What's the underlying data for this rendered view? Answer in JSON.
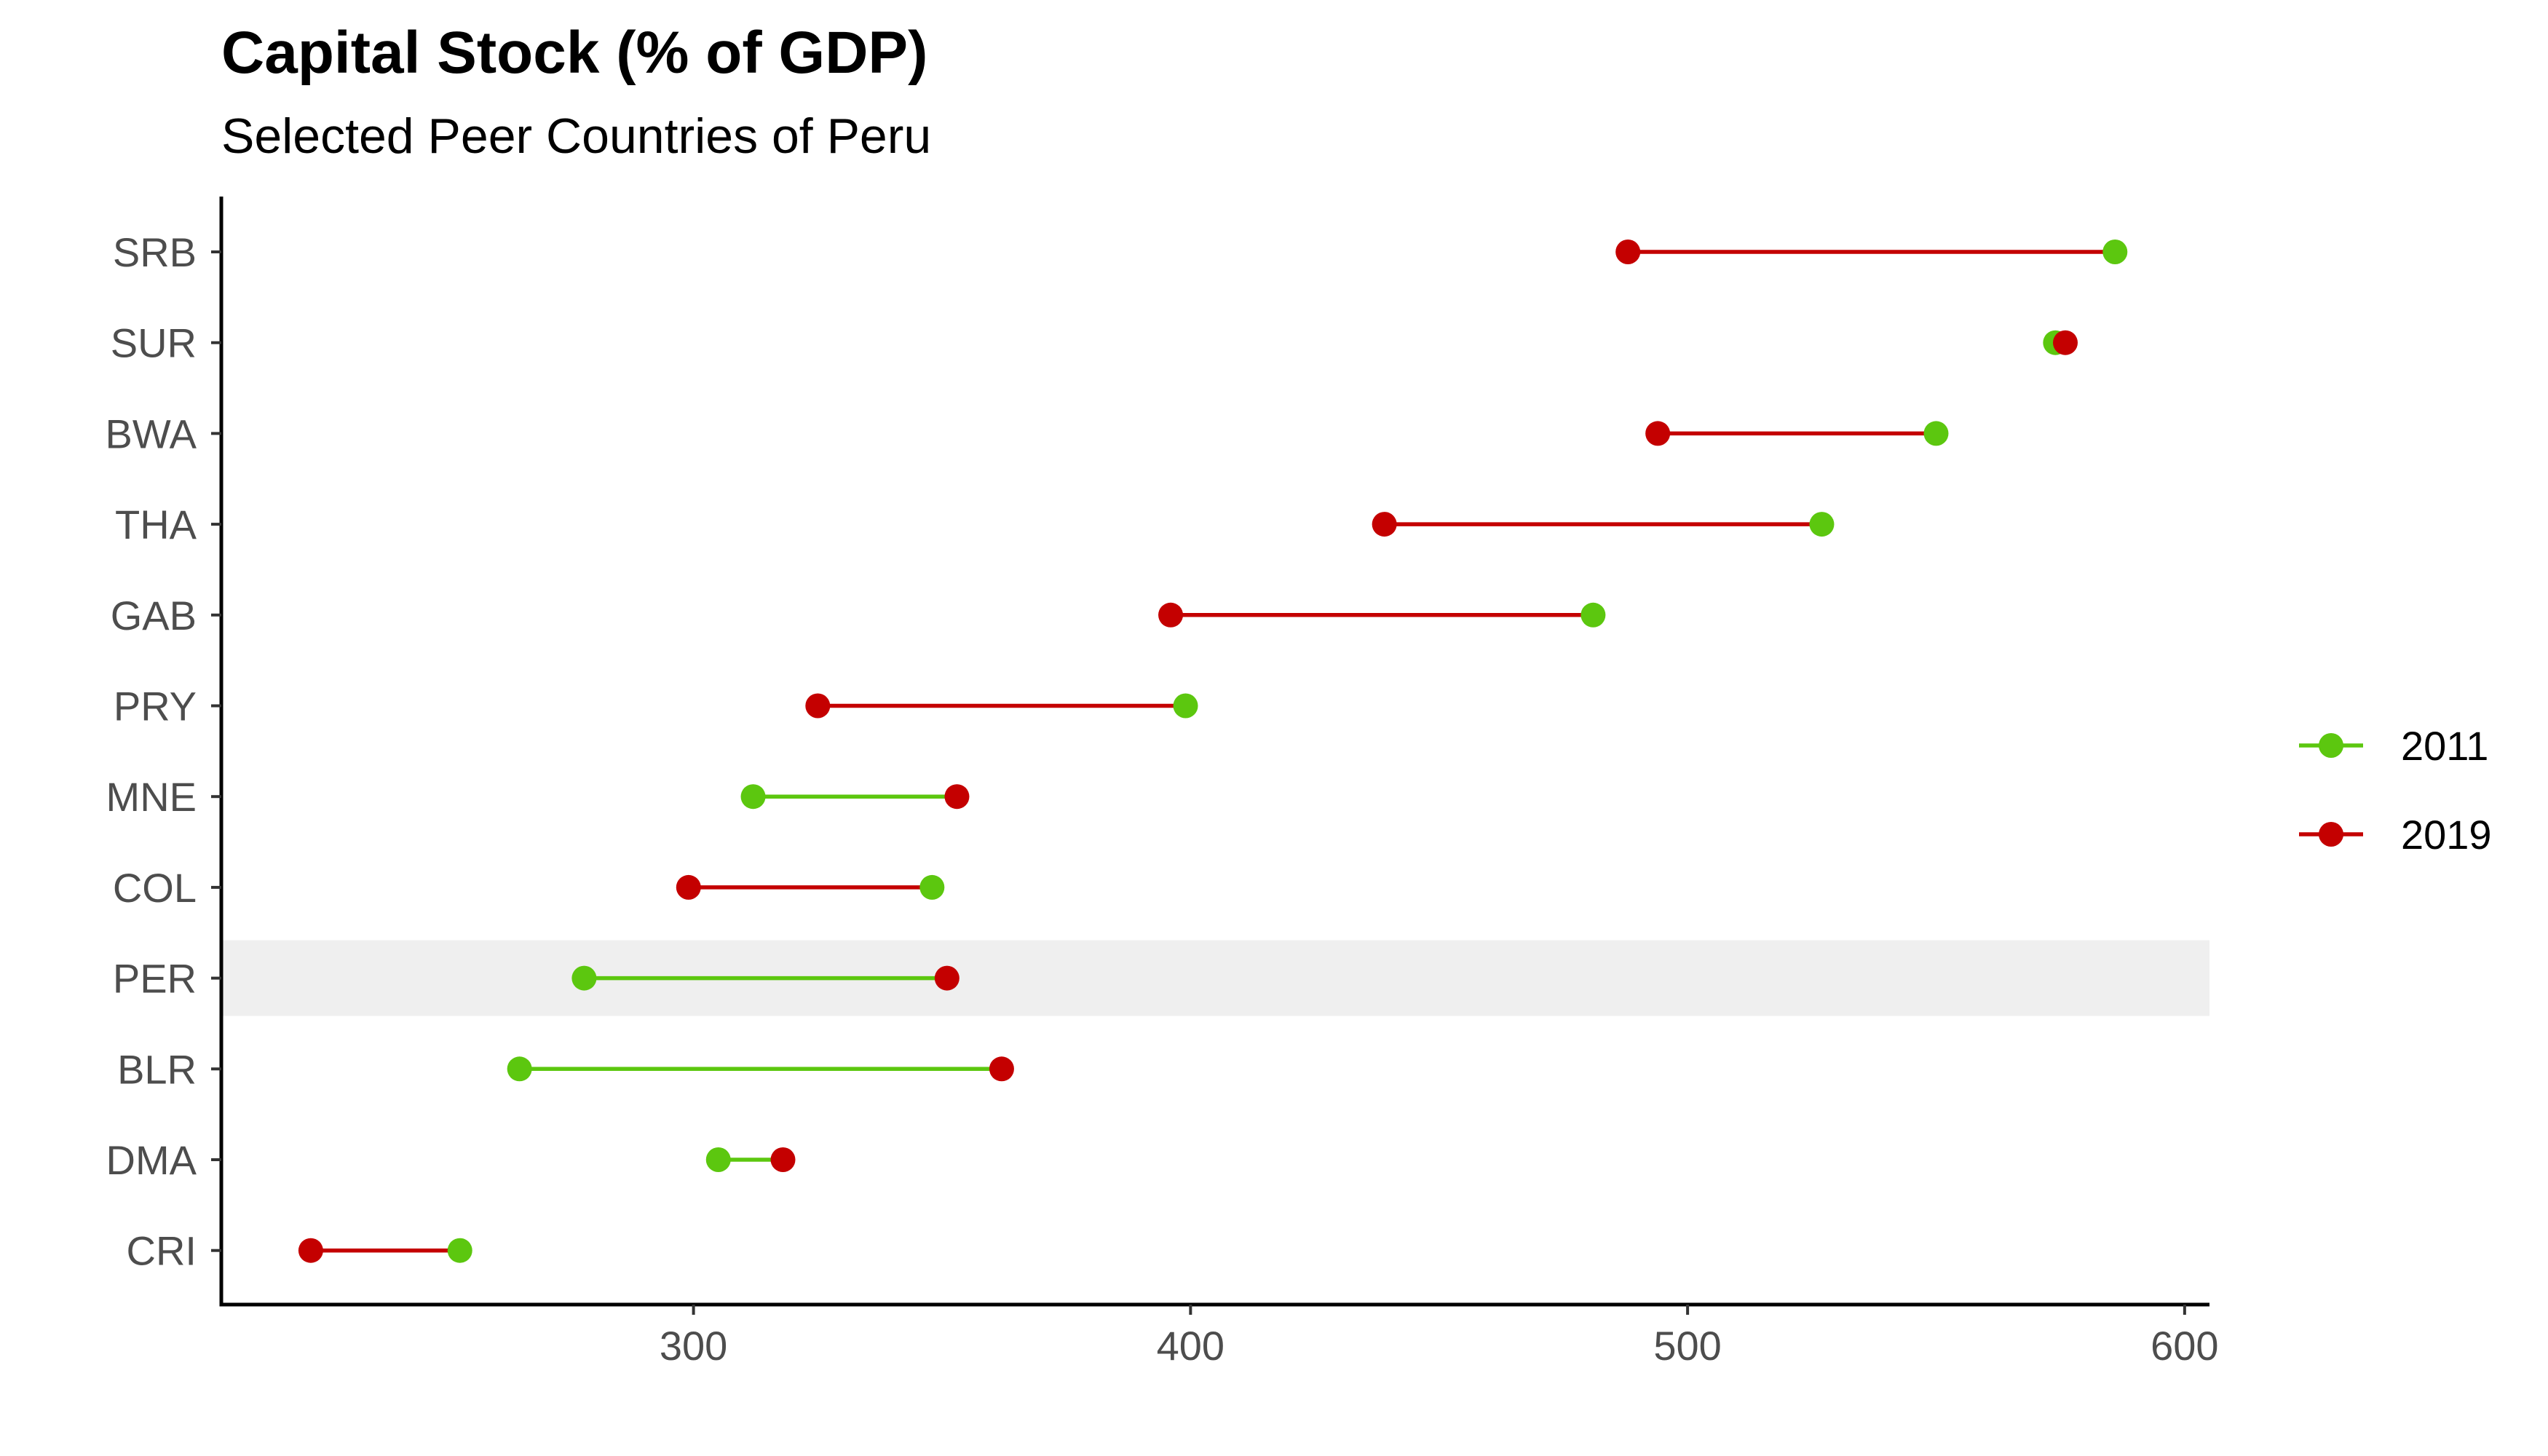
{
  "chart_data": {
    "type": "dumbbell",
    "title": "Capital Stock (% of GDP)",
    "subtitle": "Selected Peer Countries of Peru",
    "xlabel": "",
    "ylabel": "",
    "xlim": [
      205,
      605
    ],
    "x_ticks": [
      300,
      400,
      500,
      600
    ],
    "grid": false,
    "legend_position": "right",
    "highlighted_category": "PER",
    "highlight_color": "#efefef",
    "categories": [
      "SRB",
      "SUR",
      "BWA",
      "THA",
      "GAB",
      "PRY",
      "MNE",
      "COL",
      "PER",
      "BLR",
      "DMA",
      "CRI"
    ],
    "series": [
      {
        "name": "2011",
        "color": "#5cc70f",
        "values": [
          586,
          574,
          550,
          527,
          481,
          399,
          312,
          348,
          278,
          265,
          305,
          253
        ]
      },
      {
        "name": "2019",
        "color": "#c40000",
        "values": [
          488,
          576,
          494,
          439,
          396,
          325,
          353,
          299,
          351,
          362,
          318,
          223
        ]
      }
    ]
  }
}
